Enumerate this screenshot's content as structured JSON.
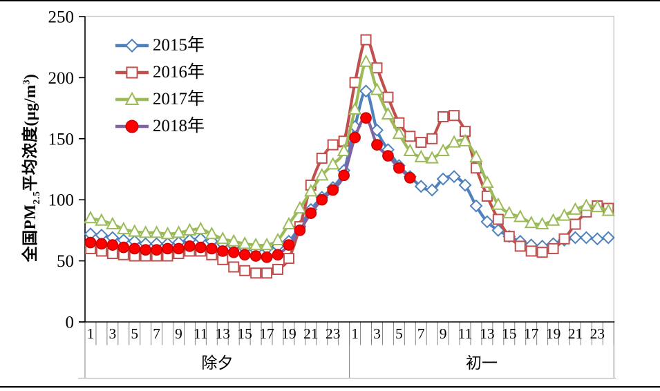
{
  "figure": {
    "kind": "document-embedded line chart",
    "background": "#FFFFFF",
    "border_rule_color": "#000000"
  },
  "chart_data": {
    "type": "line",
    "title": "",
    "ylabel": "全国PM2.5平均浓度(μg/m3)",
    "ylabel_parts": [
      "全国PM",
      "2.5",
      "平均浓度(μg/m",
      "3",
      ")"
    ],
    "ylim": [
      0,
      250
    ],
    "y_ticks": [
      0,
      50,
      100,
      150,
      200,
      250
    ],
    "grid": "off",
    "legend_position": "top-left",
    "x_structure": {
      "days": [
        "除夕",
        "初一"
      ],
      "hours_per_day": 24,
      "hour_tick_labels": [
        "1",
        "3",
        "5",
        "7",
        "9",
        "11",
        "13",
        "15",
        "17",
        "19",
        "21",
        "23"
      ]
    },
    "axis_colors": {
      "axis_line": "#000000",
      "tick_separator": "#808080",
      "plot_border": "#BFBFBF"
    },
    "series": [
      {
        "name": "2015年",
        "color": "#4F81BD",
        "marker": "diamond",
        "marker_fill": "#FFFFFF",
        "marker_stroke": "#4F81BD",
        "values": [
          72,
          71,
          69,
          67,
          66,
          64,
          64,
          64,
          65,
          67,
          68,
          66,
          64,
          62,
          60,
          59,
          60,
          62,
          66,
          78,
          92,
          102,
          110,
          124,
          160,
          189,
          157,
          141,
          128,
          119,
          111,
          108,
          117,
          119,
          112,
          95,
          82,
          75,
          70,
          66,
          63,
          62,
          64,
          67,
          69,
          69,
          68,
          69
        ]
      },
      {
        "name": "2016年",
        "color": "#C0504D",
        "marker": "square",
        "marker_fill": "#FFFFFF",
        "marker_stroke": "#C0504D",
        "values": [
          60,
          58,
          56,
          55,
          54,
          54,
          54,
          54,
          56,
          58,
          58,
          55,
          51,
          45,
          42,
          40,
          40,
          43,
          52,
          78,
          112,
          134,
          145,
          148,
          196,
          231,
          208,
          184,
          163,
          152,
          147,
          150,
          168,
          169,
          156,
          126,
          103,
          84,
          70,
          62,
          58,
          57,
          60,
          68,
          80,
          90,
          95,
          93
        ]
      },
      {
        "name": "2017年",
        "color": "#9BBB59",
        "marker": "triangle",
        "marker_fill": "#FFFFFF",
        "marker_stroke": "#9BBB59",
        "values": [
          85,
          83,
          80,
          76,
          74,
          73,
          73,
          72,
          73,
          75,
          76,
          72,
          68,
          66,
          64,
          63,
          63,
          67,
          80,
          93,
          107,
          120,
          129,
          140,
          174,
          213,
          190,
          170,
          154,
          140,
          135,
          134,
          140,
          147,
          148,
          135,
          114,
          96,
          89,
          86,
          81,
          80,
          83,
          87,
          92,
          95,
          94,
          91
        ]
      },
      {
        "name": "2018年",
        "color": "#8064A2",
        "marker": "circle",
        "marker_fill": "#FF0000",
        "marker_stroke": "#CC0000",
        "values": [
          65,
          64,
          63,
          61,
          60,
          59,
          59,
          60,
          60,
          62,
          61,
          60,
          58,
          57,
          55,
          54,
          53,
          55,
          63,
          75,
          89,
          100,
          108,
          120,
          151,
          167,
          145,
          136,
          126,
          118
        ]
      }
    ]
  }
}
